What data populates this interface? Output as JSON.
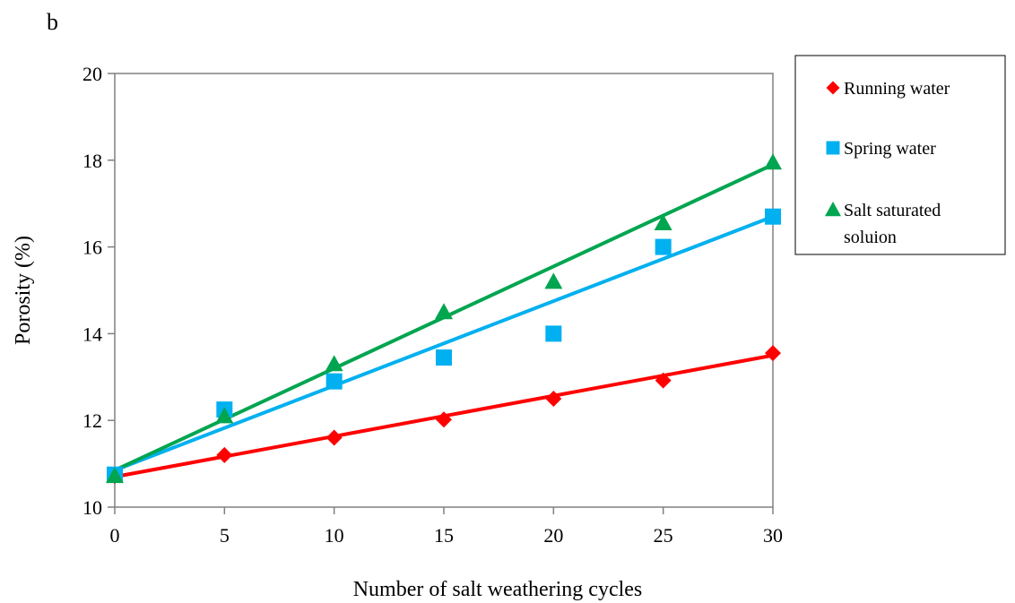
{
  "chart_data": {
    "type": "scatter",
    "panel_label": "b",
    "title": "",
    "xlabel": "Number of salt weathering cycles",
    "ylabel": "Porosity (%)",
    "xlim": [
      0,
      30
    ],
    "ylim": [
      10,
      20
    ],
    "x_ticks": [
      0,
      5,
      10,
      15,
      20,
      25,
      30
    ],
    "y_ticks": [
      10,
      12,
      14,
      16,
      18,
      20
    ],
    "grid": false,
    "legend_position": "right",
    "x": [
      0,
      5,
      10,
      15,
      20,
      25,
      30
    ],
    "series": [
      {
        "name": "Running water",
        "marker": "diamond",
        "color": "#ff0000",
        "values": [
          10.72,
          11.2,
          11.6,
          12.02,
          12.5,
          12.92,
          13.55
        ],
        "trendline": {
          "start": [
            0,
            10.7
          ],
          "end": [
            30,
            13.5
          ]
        }
      },
      {
        "name": "Spring water",
        "marker": "square",
        "color": "#00b0f0",
        "values": [
          10.75,
          12.25,
          12.9,
          13.45,
          14.0,
          16.0,
          16.7
        ],
        "trendline": {
          "start": [
            0,
            10.85
          ],
          "end": [
            30,
            16.7
          ]
        }
      },
      {
        "name": "Salt saturated soluion",
        "legend_lines": [
          "Salt saturated",
          "soluion"
        ],
        "marker": "triangle",
        "color": "#00a550",
        "values": [
          10.72,
          12.1,
          13.3,
          14.5,
          15.2,
          16.55,
          17.95
        ],
        "trendline": {
          "start": [
            0,
            10.85
          ],
          "end": [
            30,
            17.9
          ]
        }
      }
    ]
  }
}
